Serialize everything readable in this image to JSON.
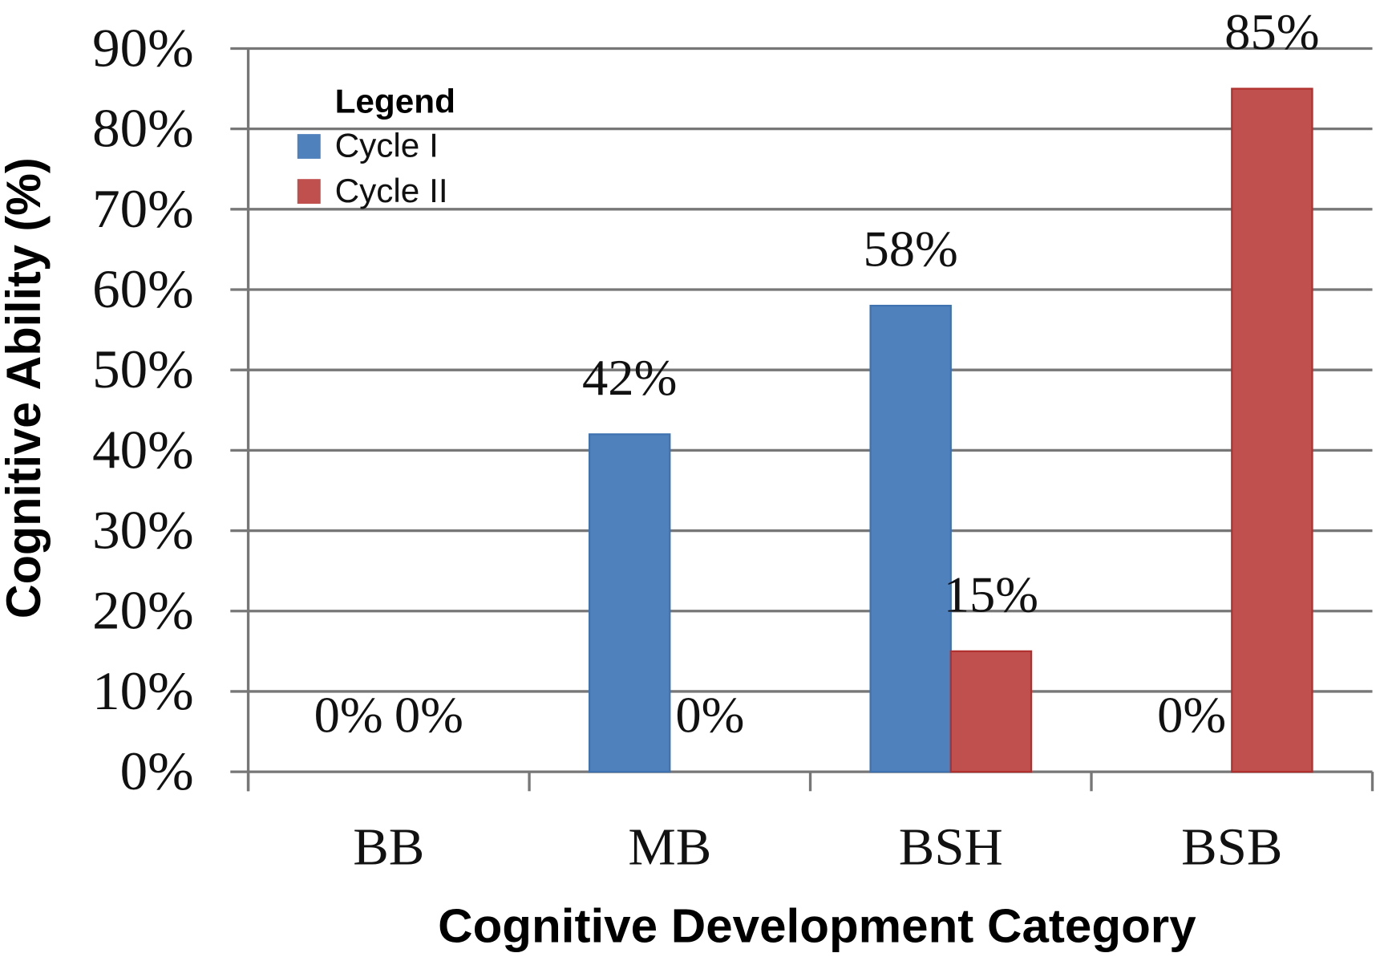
{
  "chart_data": {
    "type": "bar",
    "title": "",
    "xlabel": "Cognitive Development Category",
    "ylabel": "Cognitive Ability (%)",
    "categories": [
      "BB",
      "MB",
      "BSH",
      "BSB"
    ],
    "series": [
      {
        "name": "Cycle I",
        "values": [
          0,
          42,
          58,
          0
        ],
        "labels": [
          "0%",
          "42%",
          "58%",
          "0%"
        ],
        "color": "#4f81bd"
      },
      {
        "name": "Cycle II",
        "values": [
          0,
          0,
          15,
          85
        ],
        "labels": [
          "0%",
          "0%",
          "15%",
          "85%"
        ],
        "color": "#c0504d"
      }
    ],
    "ylim": [
      0,
      90
    ],
    "yticks": [
      "0%",
      "10%",
      "20%",
      "30%",
      "40%",
      "50%",
      "60%",
      "70%",
      "80%",
      "90%"
    ],
    "grid": true,
    "legend": {
      "title": "Legend",
      "placement": "top-left"
    }
  }
}
